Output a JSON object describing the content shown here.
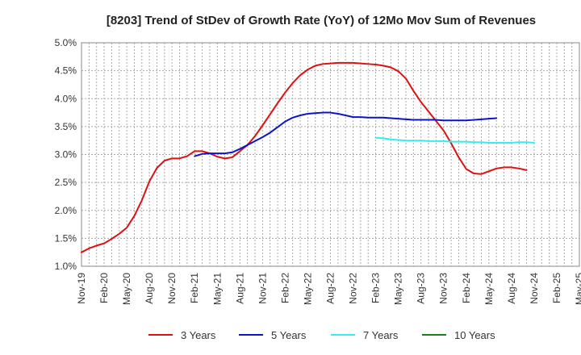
{
  "chart_data": {
    "type": "line",
    "title": "[8203]  Trend of StDev of Growth Rate (YoY) of 12Mo Mov Sum of Revenues",
    "xlabel": "",
    "ylabel": "",
    "y_tick_labels": [
      "1.0%",
      "1.5%",
      "2.0%",
      "2.5%",
      "3.0%",
      "3.5%",
      "4.0%",
      "4.5%",
      "5.0%"
    ],
    "x_tick_labels": [
      "Nov-19",
      "Feb-20",
      "May-20",
      "Aug-20",
      "Nov-20",
      "Feb-21",
      "May-21",
      "Aug-21",
      "Nov-21",
      "Feb-22",
      "May-22",
      "Aug-22",
      "Nov-22",
      "Feb-23",
      "May-23",
      "Aug-23",
      "Nov-23",
      "Feb-24",
      "May-24",
      "Aug-24",
      "Nov-24",
      "Feb-25",
      "May-25"
    ],
    "ylim": [
      1.0,
      5.0
    ],
    "grid": true,
    "legend_position": "bottom",
    "series": [
      {
        "name": "3 Years",
        "color": "#dd1111",
        "start_index": 0,
        "values": [
          1.25,
          1.32,
          1.37,
          1.41,
          1.49,
          1.58,
          1.69,
          1.9,
          2.18,
          2.52,
          2.76,
          2.89,
          2.93,
          2.93,
          2.97,
          3.06,
          3.06,
          3.02,
          2.96,
          2.93,
          2.95,
          3.06,
          3.17,
          3.33,
          3.52,
          3.72,
          3.92,
          4.11,
          4.28,
          4.42,
          4.52,
          4.59,
          4.62,
          4.63,
          4.64,
          4.64,
          4.64,
          4.63,
          4.62,
          4.61,
          4.59,
          4.56,
          4.49,
          4.36,
          4.14,
          3.94,
          3.77,
          3.6,
          3.43,
          3.2,
          2.95,
          2.74,
          2.66,
          2.65,
          2.7,
          2.75,
          2.77,
          2.77,
          2.75,
          2.72
        ]
      },
      {
        "name": "5 Years",
        "color": "#0a14c8",
        "start_index": 15,
        "values": [
          2.97,
          3.01,
          3.02,
          3.02,
          3.02,
          3.04,
          3.1,
          3.17,
          3.24,
          3.31,
          3.39,
          3.49,
          3.59,
          3.66,
          3.7,
          3.73,
          3.74,
          3.75,
          3.75,
          3.73,
          3.7,
          3.67,
          3.67,
          3.66,
          3.66,
          3.66,
          3.65,
          3.64,
          3.63,
          3.62,
          3.62,
          3.62,
          3.62,
          3.61,
          3.61,
          3.61,
          3.61,
          3.62,
          3.63,
          3.64,
          3.65
        ]
      },
      {
        "name": "7 Years",
        "color": "#33eeee",
        "start_index": 39,
        "values": [
          3.3,
          3.29,
          3.27,
          3.26,
          3.25,
          3.25,
          3.25,
          3.24,
          3.24,
          3.24,
          3.23,
          3.23,
          3.23,
          3.22,
          3.22,
          3.21,
          3.21,
          3.21,
          3.21,
          3.22,
          3.22,
          3.21
        ]
      },
      {
        "name": "10 Years",
        "color": "#1a7f1a",
        "start_index": 0,
        "values": []
      }
    ]
  }
}
